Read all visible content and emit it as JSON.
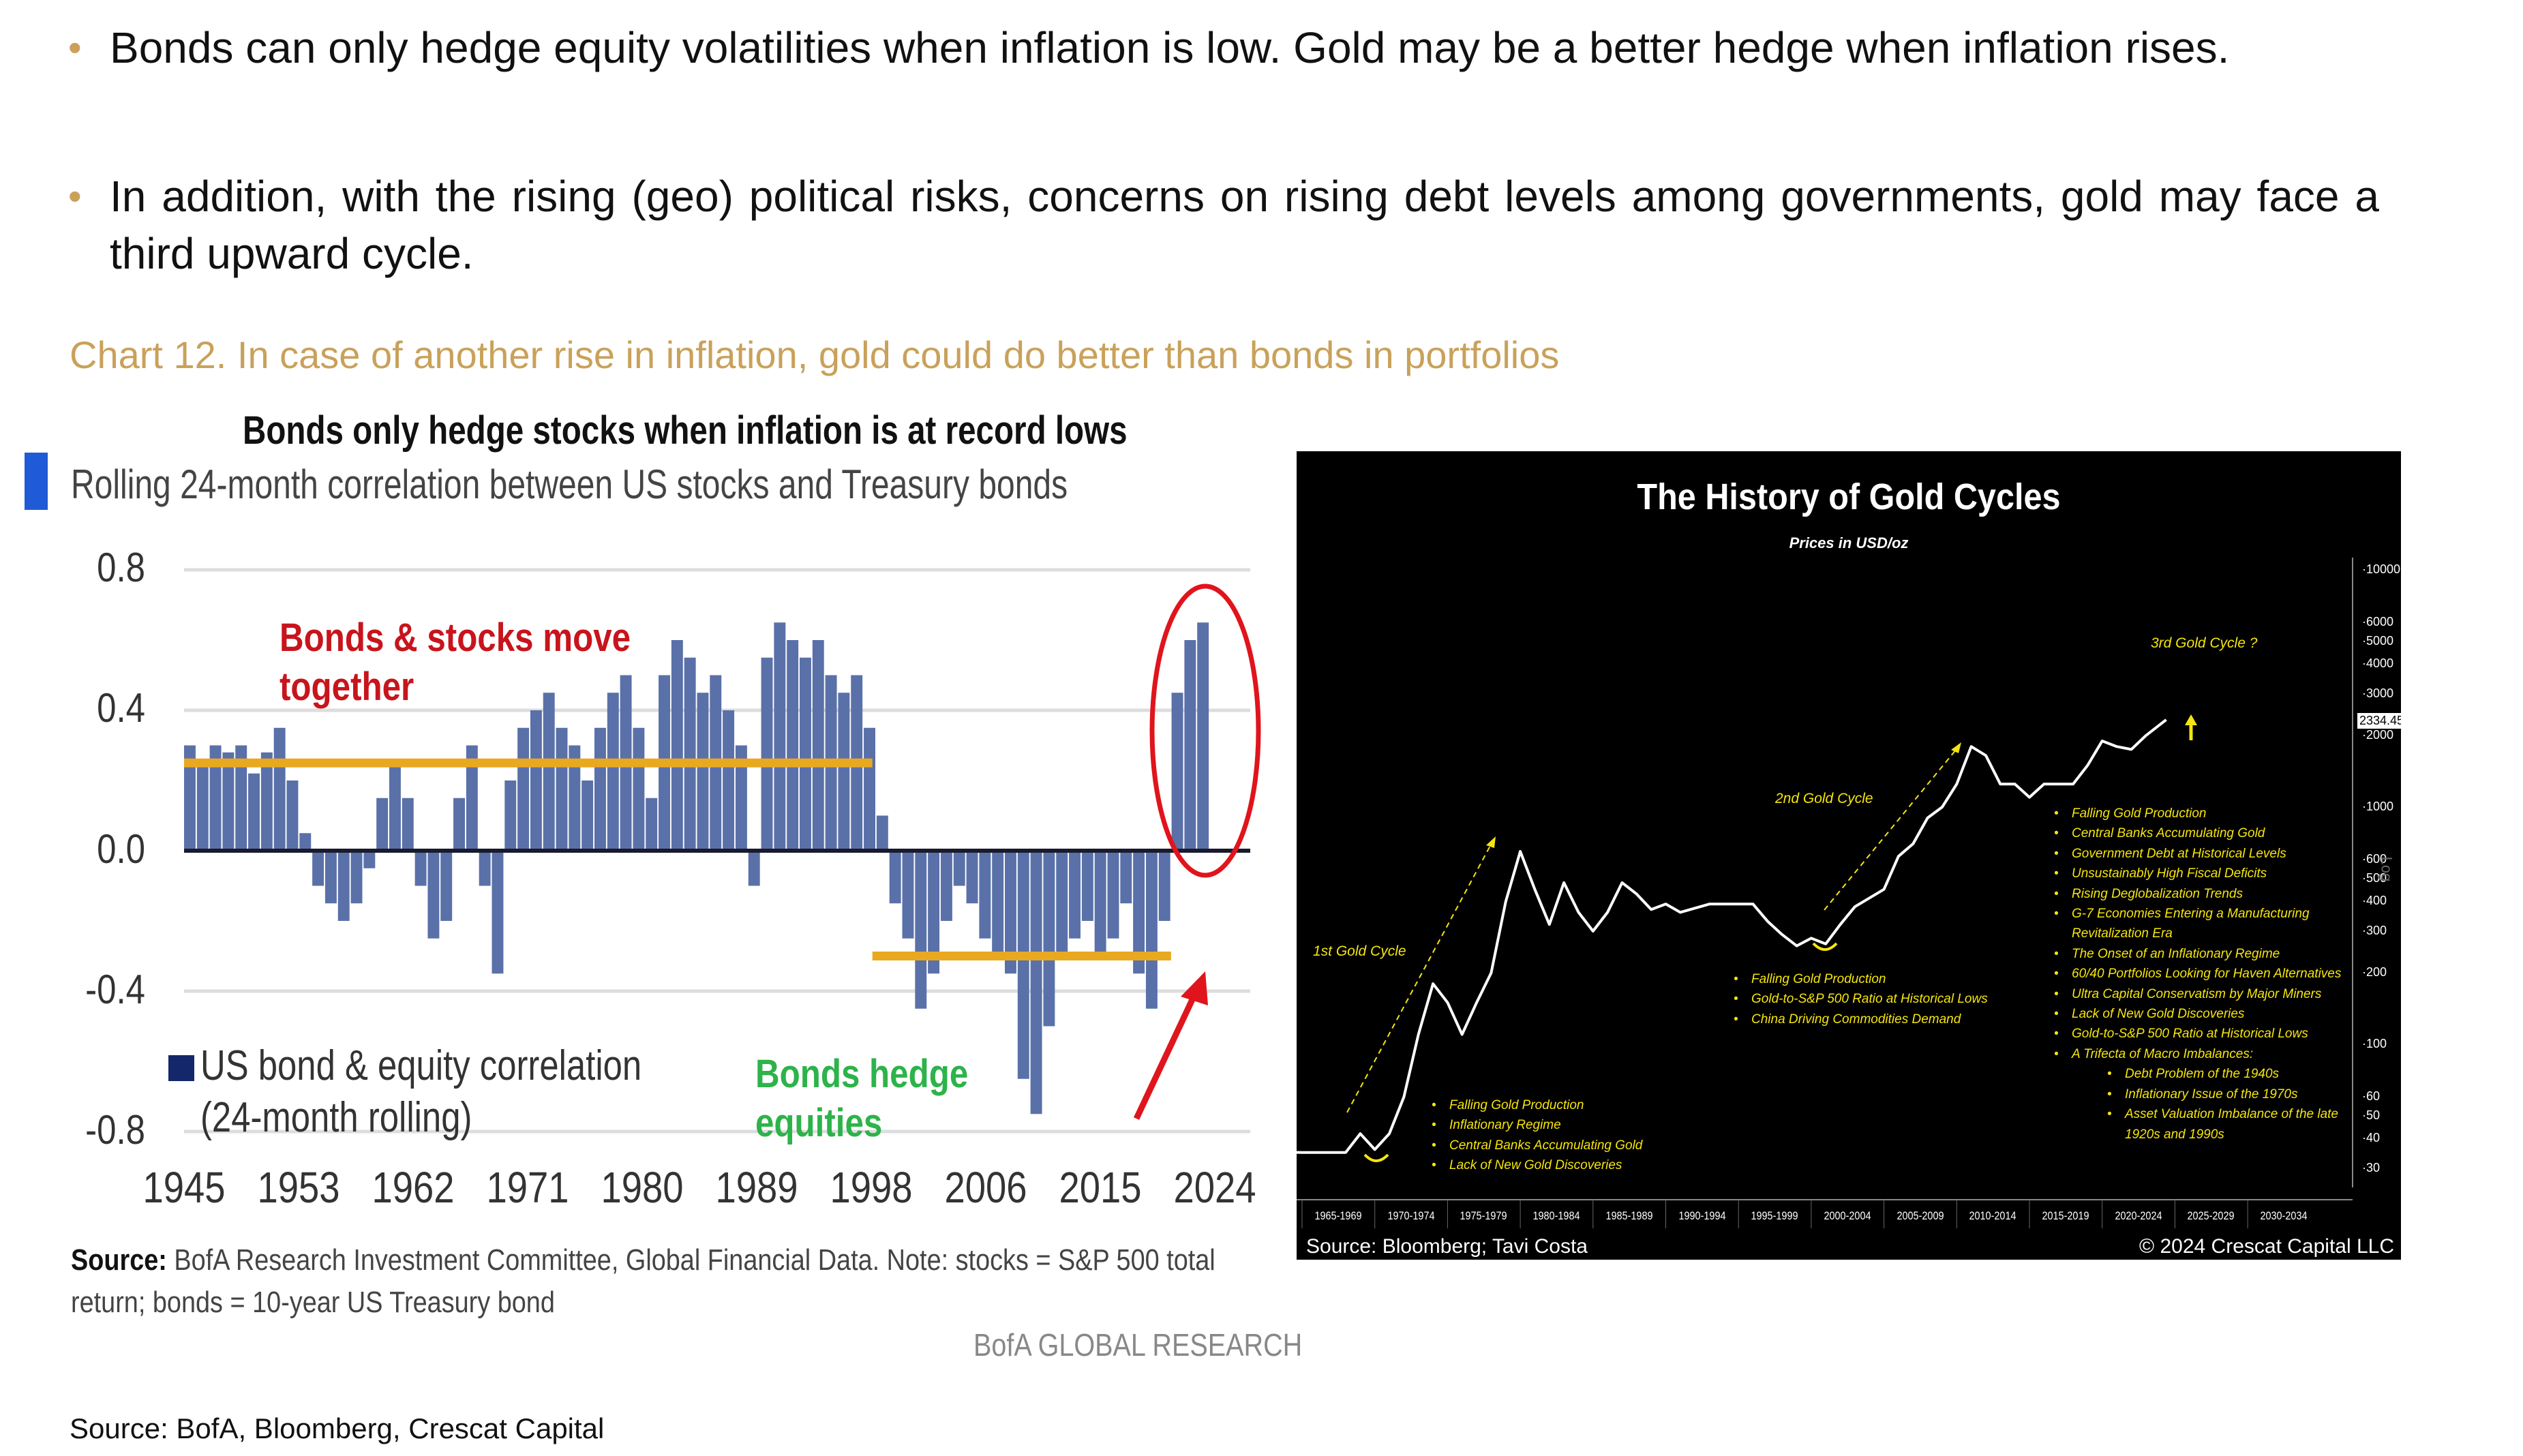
{
  "bullets": [
    "Bonds can only hedge equity volatilities when inflation is low. Gold may be a better hedge when inflation rises.",
    "In addition, with the rising (geo) political risks, concerns on rising debt levels among governments, gold may face a third upward cycle."
  ],
  "chart_caption": "Chart 12. In case of another rise in inflation, gold could do better than bonds in portfolios",
  "footer_source": "Source: BofA, Bloomberg, Crescat Capital",
  "colors": {
    "accent_gold": "#C9A15A",
    "bar": "#5A70A8",
    "orange_line": "#E8A820",
    "red": "#C8141C",
    "green": "#2DB34A",
    "gold_text": "#F5E50F"
  },
  "chart_data": [
    {
      "type": "bar",
      "title": "Bonds only hedge stocks when inflation is at record lows",
      "subtitle": "Rolling 24-month correlation between US stocks and Treasury bonds",
      "x_start": 1945,
      "x_end": 2024,
      "tick_labels": [
        "1945",
        "1953",
        "1962",
        "1971",
        "1980",
        "1989",
        "1998",
        "2006",
        "2015",
        "2024"
      ],
      "y_ticks": [
        "0.8",
        "0.4",
        "0.0",
        "-0.4",
        "-0.8"
      ],
      "ylim": [
        -0.8,
        0.8
      ],
      "legend": [
        "US bond & equity correlation",
        "(24-month rolling)"
      ],
      "series": [
        {
          "name": "US bond & equity correlation (24-month rolling)",
          "values": [
            0.3,
            0.25,
            0.3,
            0.28,
            0.3,
            0.22,
            0.28,
            0.35,
            0.2,
            0.05,
            -0.1,
            -0.15,
            -0.2,
            -0.15,
            -0.05,
            0.15,
            0.25,
            0.15,
            -0.1,
            -0.25,
            -0.2,
            0.15,
            0.3,
            -0.1,
            -0.35,
            0.2,
            0.35,
            0.4,
            0.45,
            0.35,
            0.3,
            0.2,
            0.35,
            0.45,
            0.5,
            0.35,
            0.15,
            0.5,
            0.6,
            0.55,
            0.45,
            0.5,
            0.4,
            0.3,
            -0.1,
            0.55,
            0.65,
            0.6,
            0.55,
            0.6,
            0.5,
            0.45,
            0.5,
            0.35,
            0.1,
            -0.15,
            -0.25,
            -0.45,
            -0.35,
            -0.2,
            -0.1,
            -0.15,
            -0.25,
            -0.3,
            -0.35,
            -0.65,
            -0.75,
            -0.5,
            -0.3,
            -0.25,
            -0.2,
            -0.3,
            -0.25,
            -0.15,
            -0.35,
            -0.45,
            -0.2,
            0.45,
            0.6,
            0.65
          ]
        }
      ],
      "reference_lines": [
        {
          "from": 1945,
          "to": 1998,
          "value": 0.25
        },
        {
          "from": 1998,
          "to": 2021,
          "value": -0.3
        }
      ],
      "annotations": {
        "together": [
          "Bonds & stocks move",
          "together"
        ],
        "hedge": [
          "Bonds hedge",
          "equities"
        ]
      },
      "source_bold": "Source:",
      "source_line1": " BofA Research Investment Committee, Global Financial Data. Note: stocks = S&P 500 total",
      "source_line2": "return; bonds = 10-year US Treasury bond",
      "brand": "BofA GLOBAL RESEARCH"
    },
    {
      "type": "line",
      "title": "The History of Gold Cycles",
      "subtitle": "Prices in USD/oz",
      "y_scale": "log",
      "y_axis_label": "Log",
      "y_ticks": [
        10000,
        6000,
        5000,
        4000,
        3000,
        2000,
        1000,
        600,
        500,
        400,
        300,
        200,
        100,
        60,
        50,
        40,
        30
      ],
      "last_value": "2334.45",
      "x_categories": [
        "1965-1969",
        "1970-1974",
        "1975-1979",
        "1980-1984",
        "1985-1989",
        "1990-1994",
        "1995-1999",
        "2000-2004",
        "2005-2009",
        "2010-2014",
        "2015-2019",
        "2020-2024",
        "2025-2029",
        "2030-2034"
      ],
      "series": [
        {
          "name": "Gold price",
          "x": [
            1965,
            1968,
            1969,
            1970,
            1971,
            1972,
            1973,
            1974,
            1975,
            1976,
            1977,
            1978,
            1979,
            1980,
            1981,
            1982,
            1983,
            1984,
            1985,
            1986,
            1987,
            1988,
            1989,
            1990,
            1991,
            1993,
            1996,
            1997,
            1998,
            1999,
            2000,
            2001,
            2002,
            2003,
            2005,
            2006,
            2007,
            2008,
            2009,
            2010,
            2011,
            2012,
            2013,
            2014,
            2015,
            2016,
            2018,
            2019,
            2020,
            2021,
            2022,
            2023,
            2024.4
          ],
          "y": [
            35,
            35,
            42,
            36,
            42,
            60,
            110,
            180,
            150,
            110,
            150,
            200,
            400,
            650,
            450,
            320,
            480,
            360,
            300,
            360,
            480,
            430,
            370,
            390,
            360,
            390,
            390,
            330,
            290,
            260,
            280,
            265,
            320,
            380,
            450,
            620,
            700,
            900,
            1000,
            1250,
            1800,
            1650,
            1250,
            1250,
            1100,
            1250,
            1250,
            1500,
            1900,
            1800,
            1750,
            2000,
            2334
          ]
        }
      ],
      "annotations": {
        "cycle1": "1st Gold Cycle",
        "cycle2": "2nd Gold Cycle",
        "cycle3": "3rd Gold Cycle ?",
        "list1": [
          "Falling Gold Production",
          "Inflationary Regime",
          "Central Banks Accumulating Gold",
          "Lack of New Gold Discoveries"
        ],
        "list2": [
          "Falling Gold Production",
          "Gold-to-S&P 500 Ratio at Historical Lows",
          "China Driving Commodities Demand"
        ],
        "list3": [
          "Falling Gold Production",
          "Central Banks Accumulating Gold",
          "Government Debt at Historical Levels",
          "Unsustainably High Fiscal Deficits",
          "Rising Deglobalization Trends",
          "G-7 Economies Entering a Manufacturing Revitalization Era",
          "The Onset of an Inflationary Regime",
          "60/40 Portfolios Looking for Haven Alternatives",
          "Ultra Capital Conservatism by Major Miners",
          "Lack of New Gold Discoveries",
          "Gold-to-S&P 500 Ratio at Historical Lows",
          "A Trifecta of Macro Imbalances:"
        ],
        "list3_sub": [
          "Debt Problem of the 1940s",
          "Inflationary Issue of the 1970s",
          "Asset Valuation Imbalance of the late 1920s and 1990s"
        ]
      },
      "source": "Source: Bloomberg; Tavi Costa",
      "copyright": "© 2024 Crescat Capital LLC"
    }
  ]
}
